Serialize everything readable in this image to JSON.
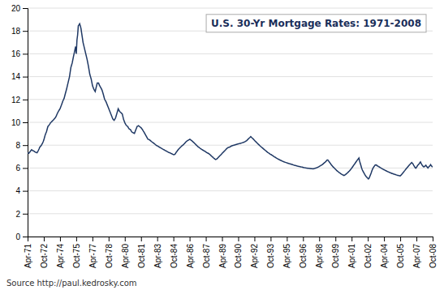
{
  "chart_data": {
    "type": "line",
    "title": "U.S. 30-Yr Mortgage Rates: 1971-2008",
    "annotations": [
      "Source http://paul.kedrosky.com"
    ],
    "color": "#1f3864",
    "grid": true,
    "xlim": [
      0,
      450
    ],
    "xticks": [
      {
        "value": 0,
        "label": "Apr-71"
      },
      {
        "value": 18,
        "label": "Oct-72"
      },
      {
        "value": 36,
        "label": "Apr-74"
      },
      {
        "value": 54,
        "label": "Oct-75"
      },
      {
        "value": 72,
        "label": "Apr-77"
      },
      {
        "value": 90,
        "label": "Oct-78"
      },
      {
        "value": 108,
        "label": "Apr-80"
      },
      {
        "value": 126,
        "label": "Oct-81"
      },
      {
        "value": 144,
        "label": "Apr-83"
      },
      {
        "value": 162,
        "label": "Oct-84"
      },
      {
        "value": 180,
        "label": "Apr-86"
      },
      {
        "value": 198,
        "label": "Oct-87"
      },
      {
        "value": 216,
        "label": "Apr-89"
      },
      {
        "value": 234,
        "label": "Oct-90"
      },
      {
        "value": 252,
        "label": "Apr-92"
      },
      {
        "value": 270,
        "label": "Oct-93"
      },
      {
        "value": 288,
        "label": "Apr-95"
      },
      {
        "value": 306,
        "label": "Oct-96"
      },
      {
        "value": 324,
        "label": "Apr-98"
      },
      {
        "value": 342,
        "label": "Oct-99"
      },
      {
        "value": 360,
        "label": "Apr-01"
      },
      {
        "value": 378,
        "label": "Oct-02"
      },
      {
        "value": 396,
        "label": "Apr-04"
      },
      {
        "value": 414,
        "label": "Oct-05"
      },
      {
        "value": 432,
        "label": "Apr-07"
      },
      {
        "value": 450,
        "label": "Oct-08"
      }
    ],
    "ylim": [
      0,
      20
    ],
    "yticks": [
      0,
      2,
      4,
      6,
      8,
      10,
      12,
      14,
      16,
      18,
      20
    ],
    "values": [
      7.33,
      7.31,
      7.29,
      7.38,
      7.46,
      7.53,
      7.6,
      7.55,
      7.52,
      7.49,
      7.45,
      7.4,
      7.38,
      7.35,
      7.33,
      7.43,
      7.55,
      7.68,
      7.82,
      7.89,
      7.96,
      8.06,
      8.16,
      8.3,
      8.45,
      8.67,
      8.89,
      9.04,
      9.19,
      9.41,
      9.63,
      9.7,
      9.78,
      9.87,
      9.97,
      10.02,
      10.08,
      10.14,
      10.2,
      10.26,
      10.33,
      10.41,
      10.5,
      10.64,
      10.78,
      10.89,
      11.01,
      11.1,
      11.2,
      11.35,
      11.5,
      11.67,
      11.84,
      11.97,
      12.1,
      12.32,
      12.55,
      12.77,
      13.0,
      13.25,
      13.5,
      13.75,
      14.0,
      14.4,
      14.8,
      15.0,
      15.2,
      15.5,
      15.8,
      16.07,
      16.35,
      16.63,
      16.0,
      17.2,
      17.66,
      18.45,
      18.53,
      18.63,
      18.45,
      18.2,
      17.8,
      17.4,
      17.0,
      16.75,
      16.5,
      16.25,
      16.0,
      15.75,
      15.5,
      15.2,
      14.9,
      14.55,
      14.2,
      14.0,
      13.8,
      13.5,
      13.2,
      13.05,
      12.9,
      12.8,
      12.7,
      12.95,
      13.2,
      13.44,
      13.44,
      13.44,
      13.27,
      13.16,
      13.06,
      12.95,
      12.83,
      12.64,
      12.45,
      12.22,
      12.0,
      11.9,
      11.8,
      11.65,
      11.5,
      11.35,
      11.2,
      11.05,
      10.9,
      10.75,
      10.6,
      10.45,
      10.3,
      10.23,
      10.17,
      10.27,
      10.37,
      10.57,
      10.77,
      10.97,
      11.18,
      11.07,
      10.96,
      10.9,
      10.85,
      10.79,
      10.74,
      10.49,
      10.24,
      10.09,
      9.94,
      9.83,
      9.73,
      9.68,
      9.64,
      9.53,
      9.43,
      9.4,
      9.38,
      9.27,
      9.16,
      9.12,
      9.09,
      9.06,
      9.03,
      9.18,
      9.34,
      9.49,
      9.64,
      9.67,
      9.71,
      9.66,
      9.61,
      9.56,
      9.52,
      9.43,
      9.35,
      9.25,
      9.16,
      9.05,
      8.94,
      8.83,
      8.73,
      8.62,
      8.52,
      8.5,
      8.48,
      8.43,
      8.38,
      8.33,
      8.28,
      8.24,
      8.2,
      8.15,
      8.1,
      8.05,
      8.0,
      7.96,
      7.93,
      7.9,
      7.86,
      7.82,
      7.79,
      7.75,
      7.72,
      7.68,
      7.65,
      7.62,
      7.59,
      7.55,
      7.52,
      7.49,
      7.46,
      7.42,
      7.39,
      7.36,
      7.34,
      7.31,
      7.28,
      7.25,
      7.22,
      7.19,
      7.16,
      7.18,
      7.2,
      7.3,
      7.4,
      7.47,
      7.55,
      7.62,
      7.69,
      7.75,
      7.82,
      7.87,
      7.93,
      7.97,
      8.02,
      8.08,
      8.14,
      8.21,
      8.28,
      8.33,
      8.38,
      8.41,
      8.45,
      8.48,
      8.52,
      8.47,
      8.43,
      8.38,
      8.33,
      8.27,
      8.22,
      8.16,
      8.1,
      8.04,
      7.98,
      7.92,
      7.86,
      7.82,
      7.78,
      7.73,
      7.69,
      7.65,
      7.62,
      7.57,
      7.54,
      7.5,
      7.47,
      7.43,
      7.39,
      7.35,
      7.32,
      7.29,
      7.26,
      7.21,
      7.16,
      7.1,
      7.04,
      6.99,
      6.94,
      6.88,
      6.83,
      6.78,
      6.74,
      6.77,
      6.8,
      6.86,
      6.93,
      6.99,
      7.05,
      7.11,
      7.17,
      7.23,
      7.3,
      7.36,
      7.42,
      7.48,
      7.54,
      7.6,
      7.67,
      7.72,
      7.78,
      7.8,
      7.82,
      7.84,
      7.88,
      7.91,
      7.94,
      7.96,
      7.98,
      7.99,
      8.01,
      8.03,
      8.05,
      8.07,
      8.09,
      8.11,
      8.12,
      8.13,
      8.15,
      8.16,
      8.18,
      8.2,
      8.22,
      8.24,
      8.26,
      8.29,
      8.32,
      8.36,
      8.4,
      8.46,
      8.52,
      8.58,
      8.64,
      8.69,
      8.75,
      8.69,
      8.64,
      8.58,
      8.52,
      8.45,
      8.39,
      8.33,
      8.27,
      8.21,
      8.15,
      8.09,
      8.04,
      7.98,
      7.93,
      7.87,
      7.82,
      7.77,
      7.72,
      7.67,
      7.62,
      7.57,
      7.52,
      7.47,
      7.42,
      7.37,
      7.34,
      7.29,
      7.25,
      7.21,
      7.18,
      7.14,
      7.1,
      7.06,
      7.02,
      6.98,
      6.95,
      6.91,
      6.87,
      6.84,
      6.8,
      6.77,
      6.74,
      6.7,
      6.68,
      6.65,
      6.62,
      6.59,
      6.57,
      6.54,
      6.52,
      6.5,
      6.48,
      6.46,
      6.44,
      6.42,
      6.4,
      6.38,
      6.37,
      6.35,
      6.33,
      6.31,
      6.29,
      6.27,
      6.25,
      6.23,
      6.22,
      6.2,
      6.19,
      6.17,
      6.16,
      6.14,
      6.13,
      6.11,
      6.1,
      6.09,
      6.08,
      6.06,
      6.04,
      6.03,
      6.02,
      6.01,
      6.0,
      5.99,
      5.98,
      5.97,
      5.97,
      5.96,
      5.95,
      5.94,
      5.94,
      5.94,
      5.93,
      5.94,
      5.96,
      5.97,
      5.99,
      6.01,
      6.04,
      6.06,
      6.09,
      6.12,
      6.16,
      6.19,
      6.23,
      6.27,
      6.31,
      6.36,
      6.41,
      6.46,
      6.51,
      6.57,
      6.63,
      6.7,
      6.7,
      6.62,
      6.54,
      6.46,
      6.38,
      6.3,
      6.23,
      6.16,
      6.09,
      6.03,
      5.97,
      5.91,
      5.85,
      5.79,
      5.74,
      5.69,
      5.64,
      5.59,
      5.55,
      5.51,
      5.47,
      5.43,
      5.4,
      5.37,
      5.34,
      5.38,
      5.42,
      5.47,
      5.52,
      5.57,
      5.63,
      5.69,
      5.75,
      5.82,
      5.89,
      5.97,
      6.05,
      6.13,
      6.22,
      6.3,
      6.38,
      6.47,
      6.56,
      6.64,
      6.72,
      6.8,
      6.88,
      6.6,
      6.4,
      6.2,
      6.0,
      5.83,
      5.72,
      5.61,
      5.5,
      5.4,
      5.3,
      5.23,
      5.17,
      5.1,
      5.04,
      5.1,
      5.25,
      5.4,
      5.55,
      5.72,
      5.88,
      6.0,
      6.1,
      6.18,
      6.26,
      6.27,
      6.26,
      6.19,
      6.18,
      6.13,
      6.1,
      6.05,
      6.02,
      5.98,
      5.95,
      5.91,
      5.88,
      5.85,
      5.82,
      5.79,
      5.76,
      5.73,
      5.7,
      5.67,
      5.65,
      5.62,
      5.6,
      5.57,
      5.55,
      5.52,
      5.51,
      5.47,
      5.46,
      5.44,
      5.42,
      5.4,
      5.38,
      5.36,
      5.35,
      5.33,
      5.32,
      5.31,
      5.36,
      5.42,
      5.5,
      5.57,
      5.64,
      5.72,
      5.79,
      5.87,
      5.94,
      6.01,
      6.08,
      6.15,
      6.22,
      6.29,
      6.35,
      6.42,
      6.48,
      6.42,
      6.35,
      6.24,
      6.14,
      6.04,
      5.98,
      6.04,
      6.14,
      6.24,
      6.3,
      6.37,
      6.46,
      6.53,
      6.41,
      6.3,
      6.2,
      6.14,
      6.09,
      6.14,
      6.19,
      6.24,
      6.14,
      6.09,
      6.0,
      6.09,
      6.14,
      6.2,
      6.3,
      6.2,
      6.14,
      6.09
    ]
  }
}
